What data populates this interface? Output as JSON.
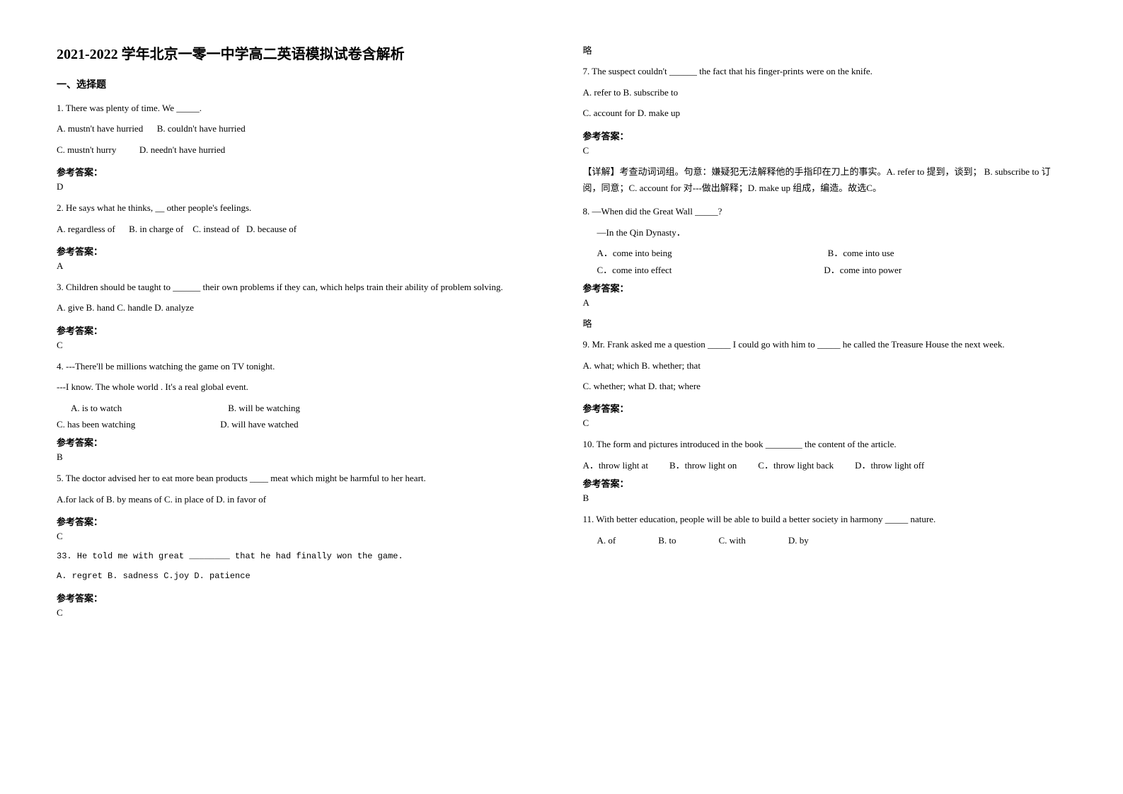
{
  "document": {
    "title": "2021-2022 学年北京一零一中学高二英语模拟试卷含解析",
    "section_header": "一、选择题",
    "answer_label": "参考答案：",
    "omit": "略",
    "explanation_label": "【详解】"
  },
  "questions": {
    "q1": {
      "text": "1. There was plenty of time. We _____.",
      "optA": "A. mustn't have hurried",
      "optB": "B.  couldn't have hurried",
      "optC": "C. mustn't hurry",
      "optD": "D.  needn't have hurried",
      "answer": "D"
    },
    "q2": {
      "text": "2. He says what he thinks, __ other people's feelings.",
      "optA": "A. regardless of",
      "optB": "B. in charge of",
      "optC": "C. instead of",
      "optD": "D. because of",
      "answer": "A"
    },
    "q3": {
      "text": "3. Children should be taught to ______ their own problems if they can, which helps train their ability of problem solving.",
      "opts": "  A. give    B. hand      C. handle    D. analyze",
      "answer": "C"
    },
    "q4": {
      "text": "4. ---There'll be millions watching the game on TV tonight.",
      "text2": "---I know.  The whole world      . It's a real global event.",
      "optA": "A. is to watch",
      "optB": "B. will be watching",
      "optC": "C. has been watching",
      "optD": "D. will have watched",
      "answer": "B"
    },
    "q5": {
      "text": "5. The doctor advised her to eat more bean products ____ meat which might be harmful to her heart.",
      "opts": "A.for lack of    B. by means of  C. in place of  D. in favor of",
      "answer": "C"
    },
    "q6": {
      "text": "33. He told me with great ________ that he had finally won the game.",
      "opts": "A. regret     B. sadness     C.joy    D. patience",
      "answer": "C"
    },
    "q7": {
      "text": "7. The suspect couldn't ______ the fact that his finger-prints were on the knife.",
      "opts1": "A. refer to   B. subscribe to",
      "opts2": "C. account for   D. make up",
      "answer": "C",
      "explanation": "考查动词词组。句意：嫌疑犯无法解释他的手指印在刀上的事实。A. refer to 提到，谈到；         B. subscribe to 订阅，同意；C. account for 对---做出解释；D. make up 组成，编造。故选C。"
    },
    "q8": {
      "text": "8. —When did the Great Wall _____?",
      "text2": "—In the Qin Dynasty．",
      "optA": "A．come into being",
      "optB": "B．come into use",
      "optC": "C．come into effect",
      "optD": "D．come into power",
      "answer": "A"
    },
    "q9": {
      "text": "9. Mr. Frank asked me a question _____ I could go with him to _____ he called the Treasure House the next week.",
      "opts1": "A. what; which          B. whether; that",
      "opts2": "C. whether; what       D. that; where",
      "answer": "C"
    },
    "q10": {
      "text": "10. The form and pictures introduced in the book ________ the content of the article.",
      "optA": "A．throw light at",
      "optB": "B．throw light on",
      "optC": "C．throw light back",
      "optD": "D．throw light off",
      "answer": "B"
    },
    "q11": {
      "text": "11. With better education, people will be able to build a better society in harmony _____ nature.",
      "optA": "A. of",
      "optB": "B. to",
      "optC": "C. with",
      "optD": "D. by"
    }
  }
}
